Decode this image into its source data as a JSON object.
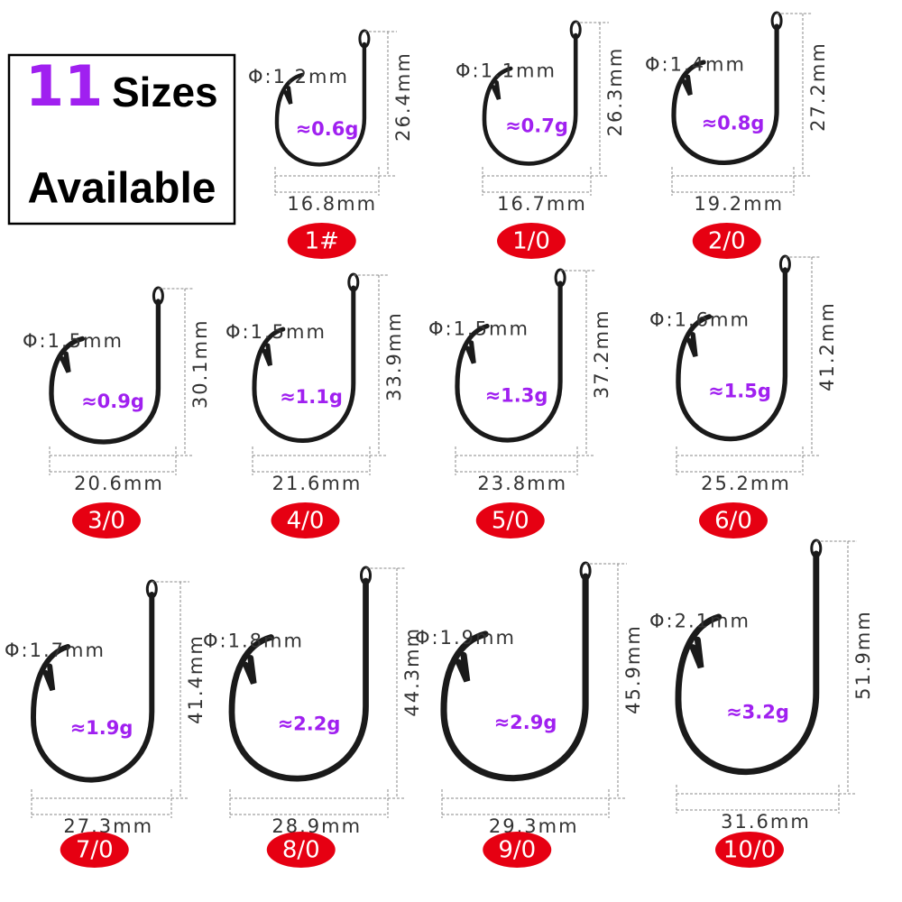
{
  "header": {
    "count": "11",
    "word": "Sizes",
    "line2": "Available"
  },
  "hooks": [
    {
      "size": "1#",
      "diameter": "Φ:1.2mm",
      "weight": "≈0.6g",
      "length": "26.4mm",
      "width": "16.8mm"
    },
    {
      "size": "1/0",
      "diameter": "Φ:1.1mm",
      "weight": "≈0.7g",
      "length": "26.3mm",
      "width": "16.7mm"
    },
    {
      "size": "2/0",
      "diameter": "Φ:1.4mm",
      "weight": "≈0.8g",
      "length": "27.2mm",
      "width": "19.2mm"
    },
    {
      "size": "3/0",
      "diameter": "Φ:1.5mm",
      "weight": "≈0.9g",
      "length": "30.1mm",
      "width": "20.6mm"
    },
    {
      "size": "4/0",
      "diameter": "Φ:1.5mm",
      "weight": "≈1.1g",
      "length": "33.9mm",
      "width": "21.6mm"
    },
    {
      "size": "5/0",
      "diameter": "Φ:1.5mm",
      "weight": "≈1.3g",
      "length": "37.2mm",
      "width": "23.8mm"
    },
    {
      "size": "6/0",
      "diameter": "Φ:1.6mm",
      "weight": "≈1.5g",
      "length": "41.2mm",
      "width": "25.2mm"
    },
    {
      "size": "7/0",
      "diameter": "Φ:1.7mm",
      "weight": "≈1.9g",
      "length": "41.4mm",
      "width": "27.3mm"
    },
    {
      "size": "8/0",
      "diameter": "Φ:1.8mm",
      "weight": "≈2.2g",
      "length": "44.3mm",
      "width": "28.9mm"
    },
    {
      "size": "9/0",
      "diameter": "Φ:1.9mm",
      "weight": "≈2.9g",
      "length": "45.9mm",
      "width": "29.3mm"
    },
    {
      "size": "10/0",
      "diameter": "Φ:2.1mm",
      "weight": "≈3.2g",
      "length": "51.9mm",
      "width": "31.6mm"
    }
  ]
}
